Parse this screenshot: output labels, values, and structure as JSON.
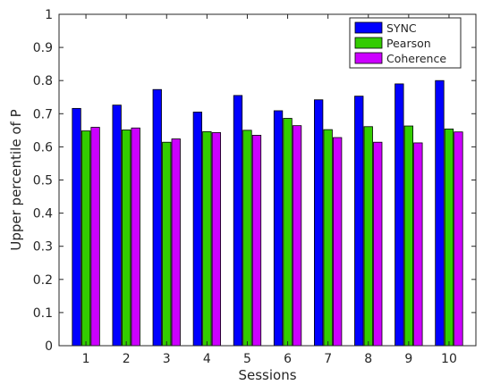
{
  "chart_data": {
    "type": "bar",
    "title": "",
    "xlabel": "Sessions",
    "ylabel": "Upper percentile of P",
    "categories": [
      "1",
      "2",
      "3",
      "4",
      "5",
      "6",
      "7",
      "8",
      "9",
      "10"
    ],
    "ylim": [
      0,
      1
    ],
    "yticks": [
      "0",
      "0.1",
      "0.2",
      "0.3",
      "0.4",
      "0.5",
      "0.6",
      "0.7",
      "0.8",
      "0.9",
      "1"
    ],
    "grid": false,
    "legend_position": "top-right",
    "series": [
      {
        "name": "SYNC",
        "color": "#0000ff",
        "values": [
          0.716,
          0.726,
          0.773,
          0.705,
          0.755,
          0.709,
          0.742,
          0.753,
          0.79,
          0.8
        ]
      },
      {
        "name": "Pearson",
        "color": "#33cc00",
        "values": [
          0.648,
          0.651,
          0.614,
          0.646,
          0.65,
          0.686,
          0.652,
          0.661,
          0.663,
          0.654
        ]
      },
      {
        "name": "Coherence",
        "color": "#cc00ff",
        "values": [
          0.659,
          0.657,
          0.624,
          0.643,
          0.635,
          0.664,
          0.628,
          0.614,
          0.612,
          0.645
        ]
      }
    ]
  }
}
